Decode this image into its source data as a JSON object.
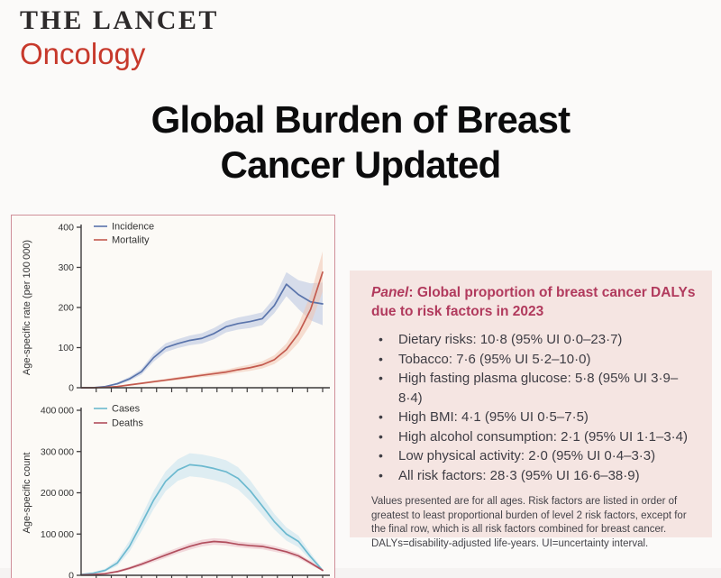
{
  "masthead": {
    "brand": "THE LANCET",
    "journal": "Oncology",
    "brand_color": "#2d2a2b",
    "journal_color": "#c7392c"
  },
  "headline": {
    "line1": "Global Burden of Breast",
    "line2": "Cancer Updated"
  },
  "panel": {
    "title_label": "Panel",
    "title_rest": ": Global proportion of breast cancer DALYs due to risk factors in 2023",
    "title_color": "#b13a5d",
    "background_color": "#f5e5e2",
    "bullets": [
      "Dietary risks: 10·8 (95% UI 0·0–23·7)",
      "Tobacco: 7·6 (95% UI 5·2–10·0)",
      "High fasting plasma glucose: 5·8 (95% UI 3·9–8·4)",
      "High BMI: 4·1 (95% UI 0·5–7·5)",
      "High alcohol consumption: 2·1 (95% UI 1·1–3·4)",
      "Low physical activity: 2·0 (95% UI 0·4–3·3)",
      "All risk factors: 28·3 (95% UI 16·6–38·9)"
    ],
    "footnote": "Values presented are for all ages. Risk factors are listed in order of greatest to least proportional burden of level 2 risk factors, except for the final row, which is all risk factors combined for breast cancer. DALYs=disability-adjusted life-years. UI=uncertainty interval."
  },
  "chart_data": [
    {
      "type": "line",
      "title": "",
      "xlabel": "",
      "ylabel": "Age-specific rate (per 100 000)",
      "ylim": [
        0,
        400
      ],
      "yticks": [
        0,
        100,
        200,
        300,
        400
      ],
      "ytick_labels": [
        "0",
        "100",
        "200",
        "300",
        "400"
      ],
      "x_tick_count": 16,
      "grid": false,
      "legend_position": "top-left",
      "x": [
        0,
        0.05,
        0.1,
        0.15,
        0.2,
        0.25,
        0.3,
        0.35,
        0.4,
        0.45,
        0.5,
        0.55,
        0.6,
        0.65,
        0.7,
        0.75,
        0.8,
        0.85,
        0.9,
        0.95,
        1
      ],
      "series": [
        {
          "name": "Incidence",
          "color": "#5a74ab",
          "band_color": "#b7c3e0",
          "values": [
            0,
            0,
            3,
            10,
            22,
            40,
            75,
            100,
            110,
            118,
            123,
            135,
            152,
            160,
            165,
            172,
            205,
            258,
            232,
            214,
            209
          ],
          "upper": [
            0,
            0,
            4,
            13,
            27,
            47,
            85,
            111,
            121,
            130,
            136,
            149,
            166,
            175,
            181,
            188,
            224,
            288,
            268,
            260,
            262
          ],
          "lower": [
            0,
            0,
            2,
            7,
            17,
            33,
            65,
            89,
            99,
            106,
            110,
            121,
            138,
            145,
            149,
            156,
            186,
            228,
            196,
            168,
            156
          ]
        },
        {
          "name": "Mortality",
          "color": "#c35a4e",
          "band_color": "#f0c5b0",
          "values": [
            0,
            0,
            1,
            3,
            7,
            11,
            15,
            19,
            23,
            27,
            31,
            35,
            39,
            45,
            50,
            57,
            70,
            95,
            135,
            195,
            288
          ],
          "upper": [
            0,
            0,
            1.5,
            4,
            9,
            13,
            18,
            22,
            27,
            31,
            36,
            41,
            45,
            52,
            58,
            66,
            81,
            110,
            158,
            232,
            340
          ],
          "lower": [
            0,
            0,
            0.5,
            2,
            5,
            9,
            12,
            16,
            19,
            23,
            26,
            29,
            33,
            38,
            42,
            48,
            59,
            80,
            112,
            158,
            240
          ]
        }
      ]
    },
    {
      "type": "line",
      "title": "",
      "xlabel": "",
      "ylabel": "Age-specific count",
      "ylim": [
        0,
        400000
      ],
      "yticks": [
        0,
        100000,
        200000,
        300000,
        400000
      ],
      "ytick_labels": [
        "0",
        "100 000",
        "200 000",
        "300 000",
        "400 000"
      ],
      "x_tick_count": 16,
      "grid": false,
      "legend_position": "top-left",
      "x": [
        0,
        0.05,
        0.1,
        0.15,
        0.2,
        0.25,
        0.3,
        0.35,
        0.4,
        0.45,
        0.5,
        0.55,
        0.6,
        0.65,
        0.7,
        0.75,
        0.8,
        0.85,
        0.9,
        0.95,
        1
      ],
      "series": [
        {
          "name": "Cases",
          "color": "#6cb9cf",
          "band_color": "#c4e2ee",
          "values": [
            2000,
            5000,
            12000,
            30000,
            70000,
            125000,
            182000,
            228000,
            255000,
            268000,
            265000,
            259000,
            251000,
            235000,
            205000,
            168000,
            130000,
            100000,
            82000,
            45000,
            12000
          ],
          "upper": [
            3000,
            7000,
            16000,
            38000,
            84000,
            143000,
            204000,
            252000,
            281000,
            296000,
            293000,
            287000,
            279000,
            262000,
            230000,
            190000,
            149000,
            116000,
            96000,
            54000,
            15000
          ],
          "lower": [
            1200,
            3500,
            9000,
            23000,
            57000,
            107000,
            160000,
            204000,
            229000,
            240000,
            237000,
            231000,
            223000,
            208000,
            180000,
            146000,
            111000,
            84000,
            68000,
            36000,
            9000
          ]
        },
        {
          "name": "Deaths",
          "color": "#b14e5d",
          "band_color": "#e9bcc5",
          "values": [
            1000,
            2000,
            4000,
            9000,
            17000,
            27000,
            38000,
            49000,
            60000,
            70000,
            78000,
            82000,
            80000,
            75000,
            72000,
            70000,
            64000,
            57000,
            47000,
            30000,
            12000
          ],
          "upper": [
            1500,
            3000,
            6000,
            12000,
            21000,
            32000,
            44000,
            56000,
            67000,
            78000,
            86000,
            90000,
            88000,
            82000,
            79000,
            77000,
            71000,
            63000,
            53000,
            35000,
            14000
          ],
          "lower": [
            600,
            1300,
            2800,
            6500,
            13500,
            22000,
            32000,
            42000,
            53000,
            62000,
            70000,
            74000,
            72000,
            68000,
            65000,
            63000,
            57000,
            51000,
            41000,
            25000,
            10000
          ]
        }
      ]
    }
  ]
}
